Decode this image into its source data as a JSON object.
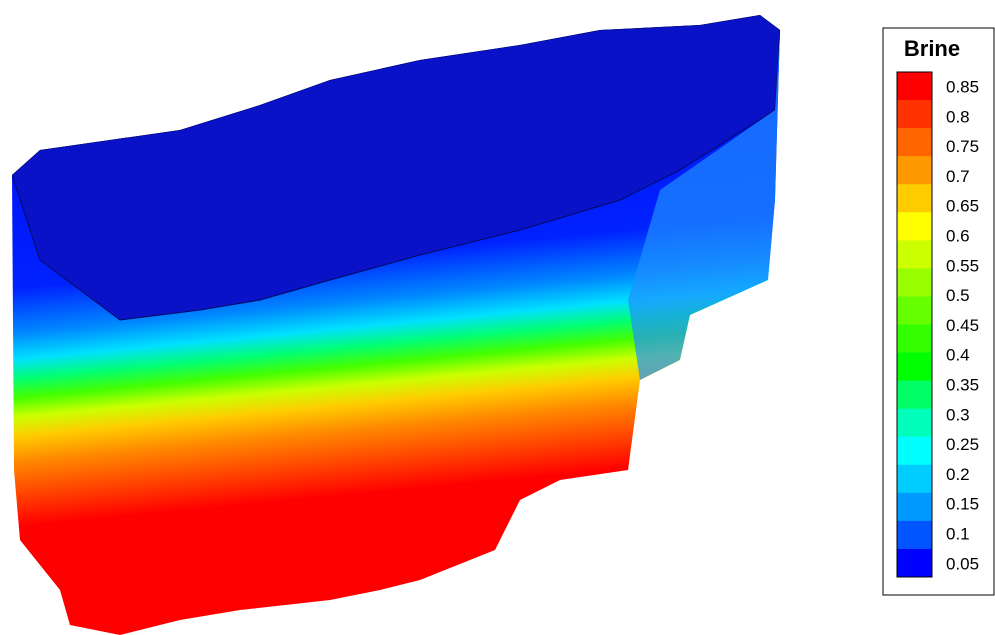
{
  "legend": {
    "title": "Brine",
    "labels": [
      0.85,
      0.8,
      0.75,
      0.7,
      0.65,
      0.6,
      0.55,
      0.5,
      0.45,
      0.4,
      0.35,
      0.3,
      0.25,
      0.2,
      0.15,
      0.1,
      0.05
    ],
    "colors": [
      "#ff0000",
      "#ff3300",
      "#ff6600",
      "#ff9900",
      "#ffcc00",
      "#ffff00",
      "#ccff00",
      "#99ff00",
      "#66ff00",
      "#33ff00",
      "#00ff00",
      "#00ff66",
      "#00ffbb",
      "#00ffff",
      "#00ccff",
      "#0099ff",
      "#0055ff",
      "#0000ff"
    ]
  }
}
